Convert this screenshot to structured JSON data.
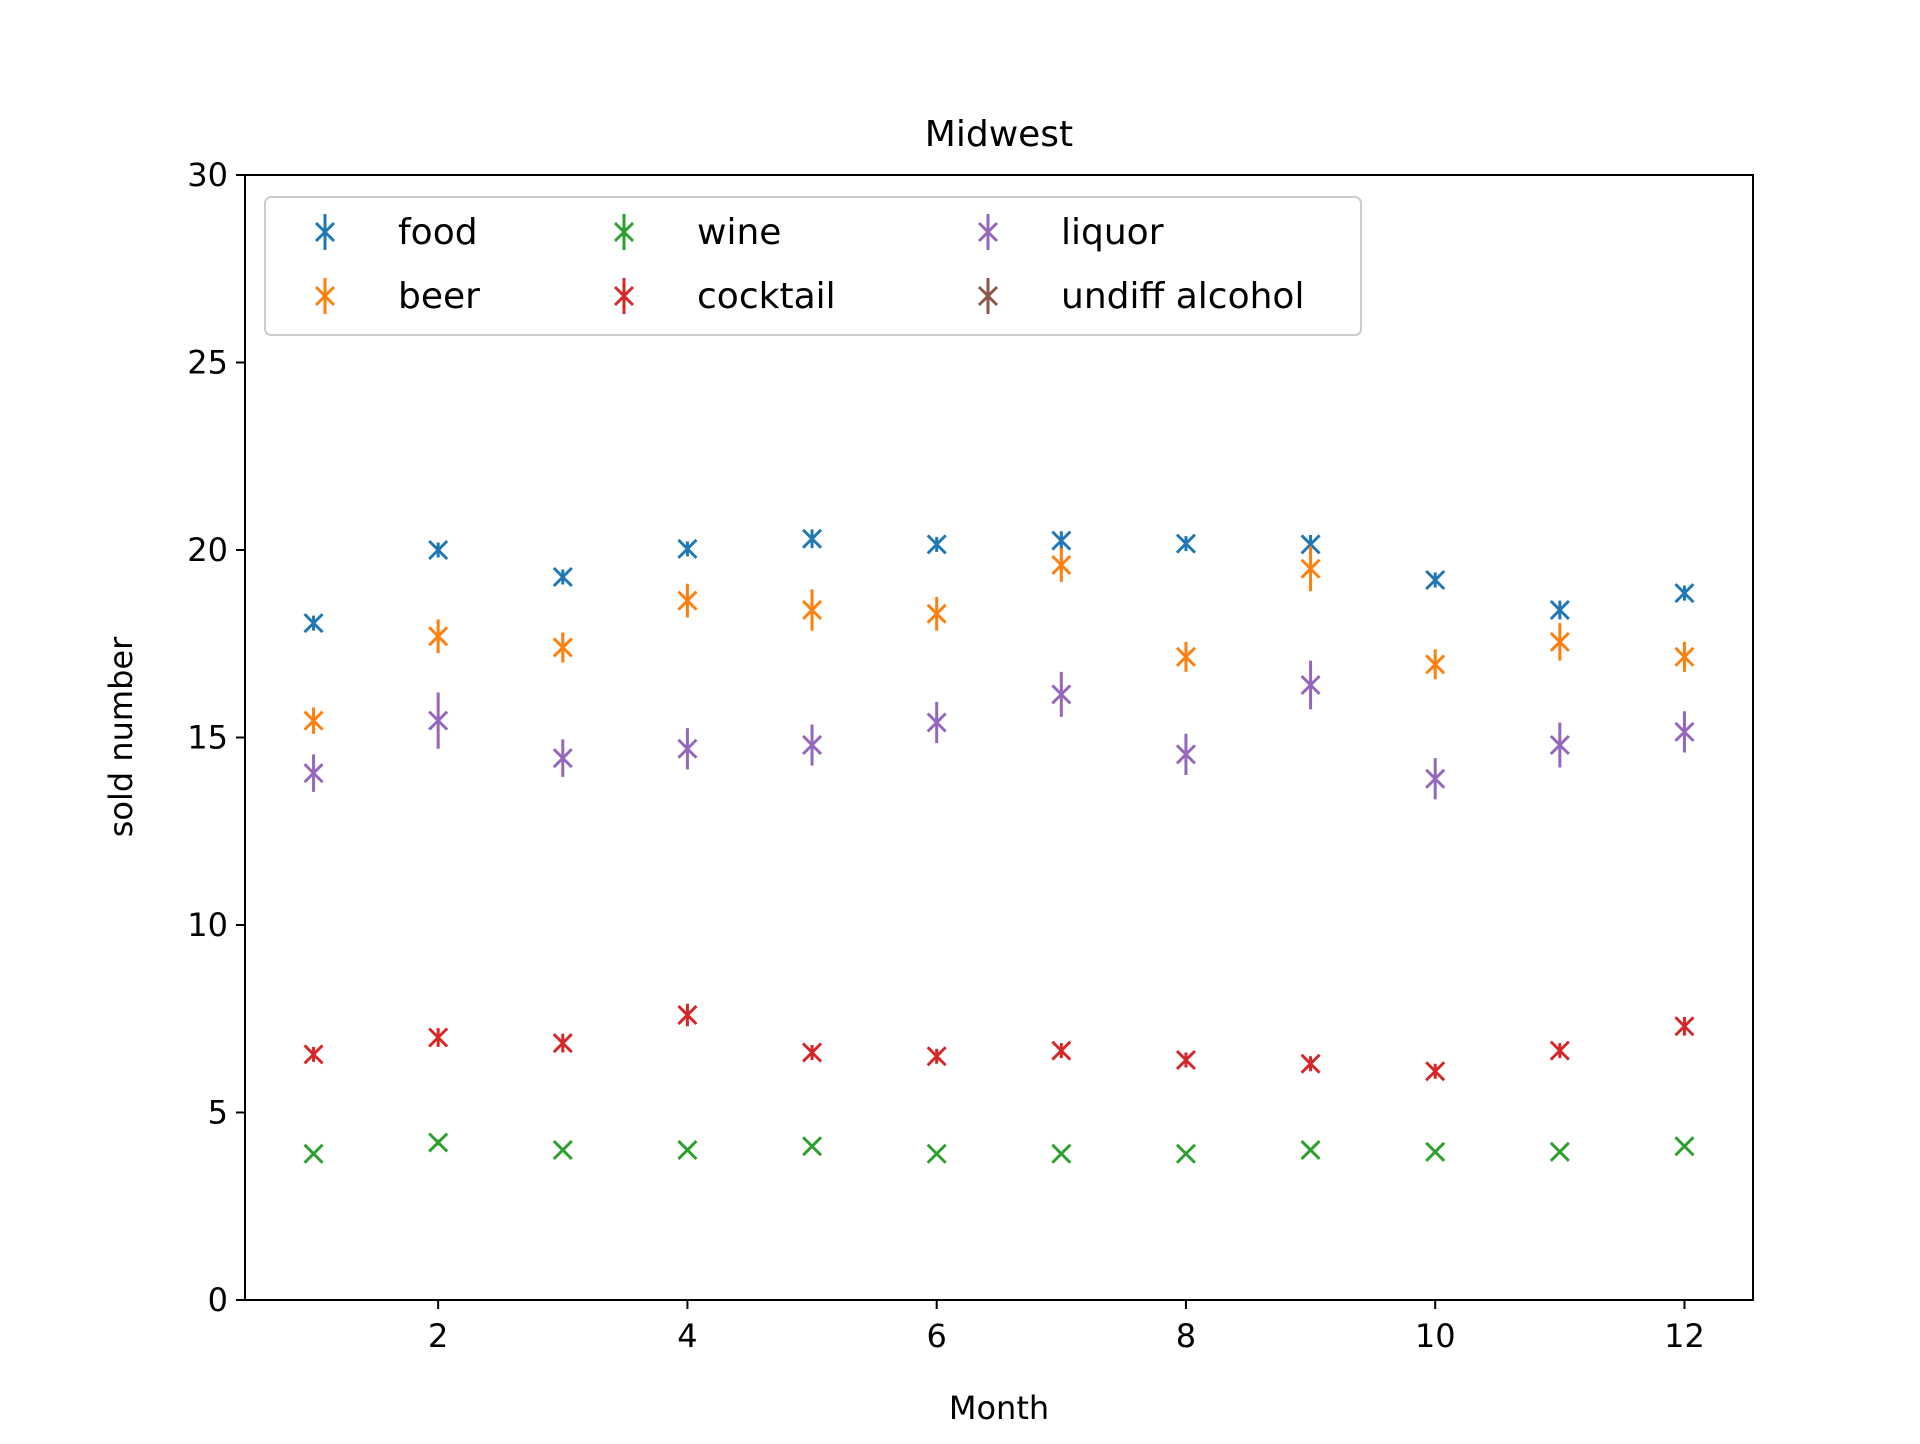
{
  "chart_data": {
    "type": "scatter",
    "title": "Midwest",
    "xlabel": "Month",
    "ylabel": "sold number",
    "xlim": [
      0.45,
      12.55
    ],
    "ylim": [
      0,
      30
    ],
    "x_ticks": [
      2,
      4,
      6,
      8,
      10,
      12
    ],
    "y_ticks": [
      0,
      5,
      10,
      15,
      20,
      25,
      30
    ],
    "grid": false,
    "legend_position": "top-left",
    "legend_columns": 3,
    "x": [
      1,
      2,
      3,
      4,
      5,
      6,
      7,
      8,
      9,
      10,
      11,
      12
    ],
    "series": [
      {
        "name": "food",
        "color": "#1f77b4",
        "values": [
          18.05,
          20.0,
          19.28,
          20.03,
          20.3,
          20.15,
          20.25,
          20.17,
          20.15,
          19.2,
          18.4,
          18.85
        ],
        "errors": [
          0.2,
          0.2,
          0.2,
          0.2,
          0.25,
          0.2,
          0.25,
          0.2,
          0.25,
          0.2,
          0.25,
          0.2
        ]
      },
      {
        "name": "beer",
        "color": "#ff7f0e",
        "values": [
          15.45,
          17.7,
          17.4,
          18.65,
          18.4,
          18.3,
          19.6,
          17.15,
          19.5,
          16.95,
          17.55,
          17.15
        ],
        "errors": [
          0.35,
          0.45,
          0.4,
          0.45,
          0.55,
          0.45,
          0.45,
          0.4,
          0.6,
          0.4,
          0.5,
          0.4
        ]
      },
      {
        "name": "wine",
        "color": "#2ca02c",
        "values": [
          3.9,
          4.2,
          4.0,
          4.0,
          4.1,
          3.9,
          3.9,
          3.9,
          4.0,
          3.95,
          3.95,
          4.1
        ],
        "errors": [
          0.05,
          0.08,
          0.05,
          0.05,
          0.06,
          0.05,
          0.05,
          0.05,
          0.06,
          0.05,
          0.05,
          0.06
        ]
      },
      {
        "name": "cocktail",
        "color": "#d62728",
        "values": [
          6.55,
          7.0,
          6.85,
          7.6,
          6.6,
          6.5,
          6.65,
          6.4,
          6.3,
          6.1,
          6.65,
          7.3
        ],
        "errors": [
          0.2,
          0.25,
          0.25,
          0.3,
          0.2,
          0.2,
          0.2,
          0.2,
          0.2,
          0.2,
          0.2,
          0.25
        ]
      },
      {
        "name": "liquor",
        "color": "#9467bd",
        "values": [
          14.05,
          15.45,
          14.45,
          14.7,
          14.8,
          15.4,
          16.15,
          14.55,
          16.4,
          13.9,
          14.8,
          15.15
        ],
        "errors": [
          0.5,
          0.75,
          0.5,
          0.55,
          0.55,
          0.55,
          0.6,
          0.55,
          0.65,
          0.55,
          0.6,
          0.55
        ]
      },
      {
        "name": "undiff alcohol",
        "color": "#8c564b",
        "values": [],
        "errors": []
      }
    ]
  }
}
